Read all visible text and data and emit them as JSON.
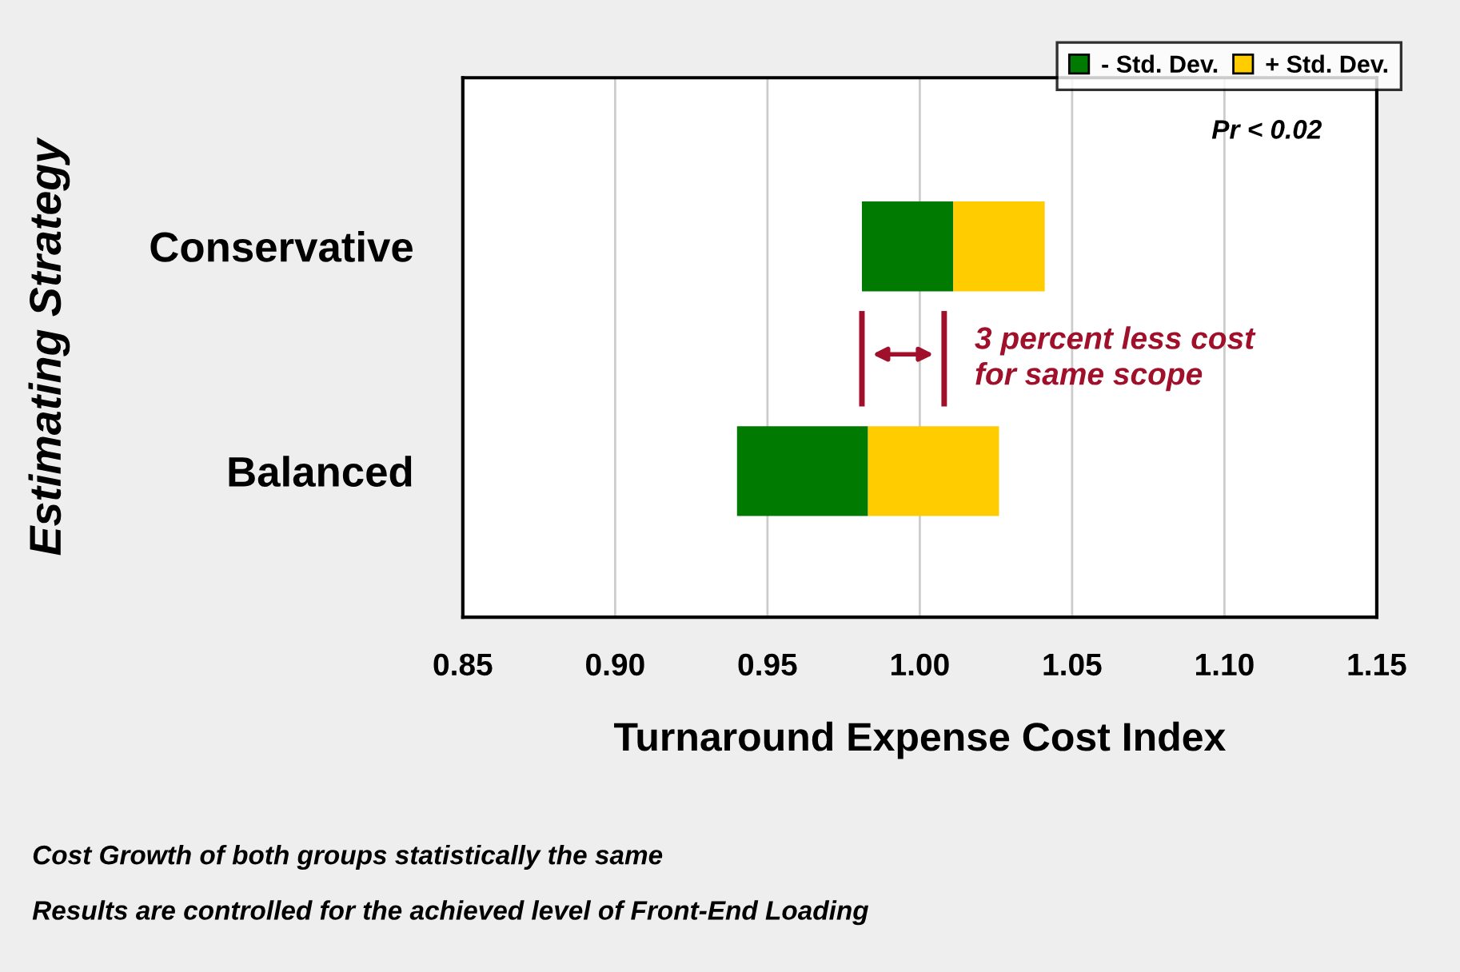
{
  "chart_data": {
    "type": "bar",
    "orientation": "horizontal",
    "ylabel": "Estimating Strategy",
    "xlabel": "Turnaround Expense Cost Index",
    "categories": [
      "Conservative",
      "Balanced"
    ],
    "series": [
      {
        "name": "- Std. Dev.",
        "color": "#007a00",
        "base": [
          0.981,
          0.94
        ],
        "values": [
          0.03,
          0.043
        ]
      },
      {
        "name": "+ Std. Dev.",
        "color": "#ffcc00",
        "base": [
          1.011,
          0.983
        ],
        "values": [
          0.03,
          0.043
        ]
      }
    ],
    "xlim": [
      0.85,
      1.15
    ],
    "xticks": [
      0.85,
      {
        "value": 0.9,
        "label": "0.90"
      },
      0.95,
      {
        "value": 1,
        "label": "1.00"
      },
      1.05,
      {
        "value": 1.1,
        "label": "1.10"
      },
      1.15
    ],
    "grid": "x",
    "legend": "top right",
    "annotations": [
      "Pr < 0.02",
      "3 percent less cost\nfor same scope",
      "Cost Growth of both groups statistically the same",
      "Results are controlled for the achieved level of Front-End Loading"
    ]
  }
}
